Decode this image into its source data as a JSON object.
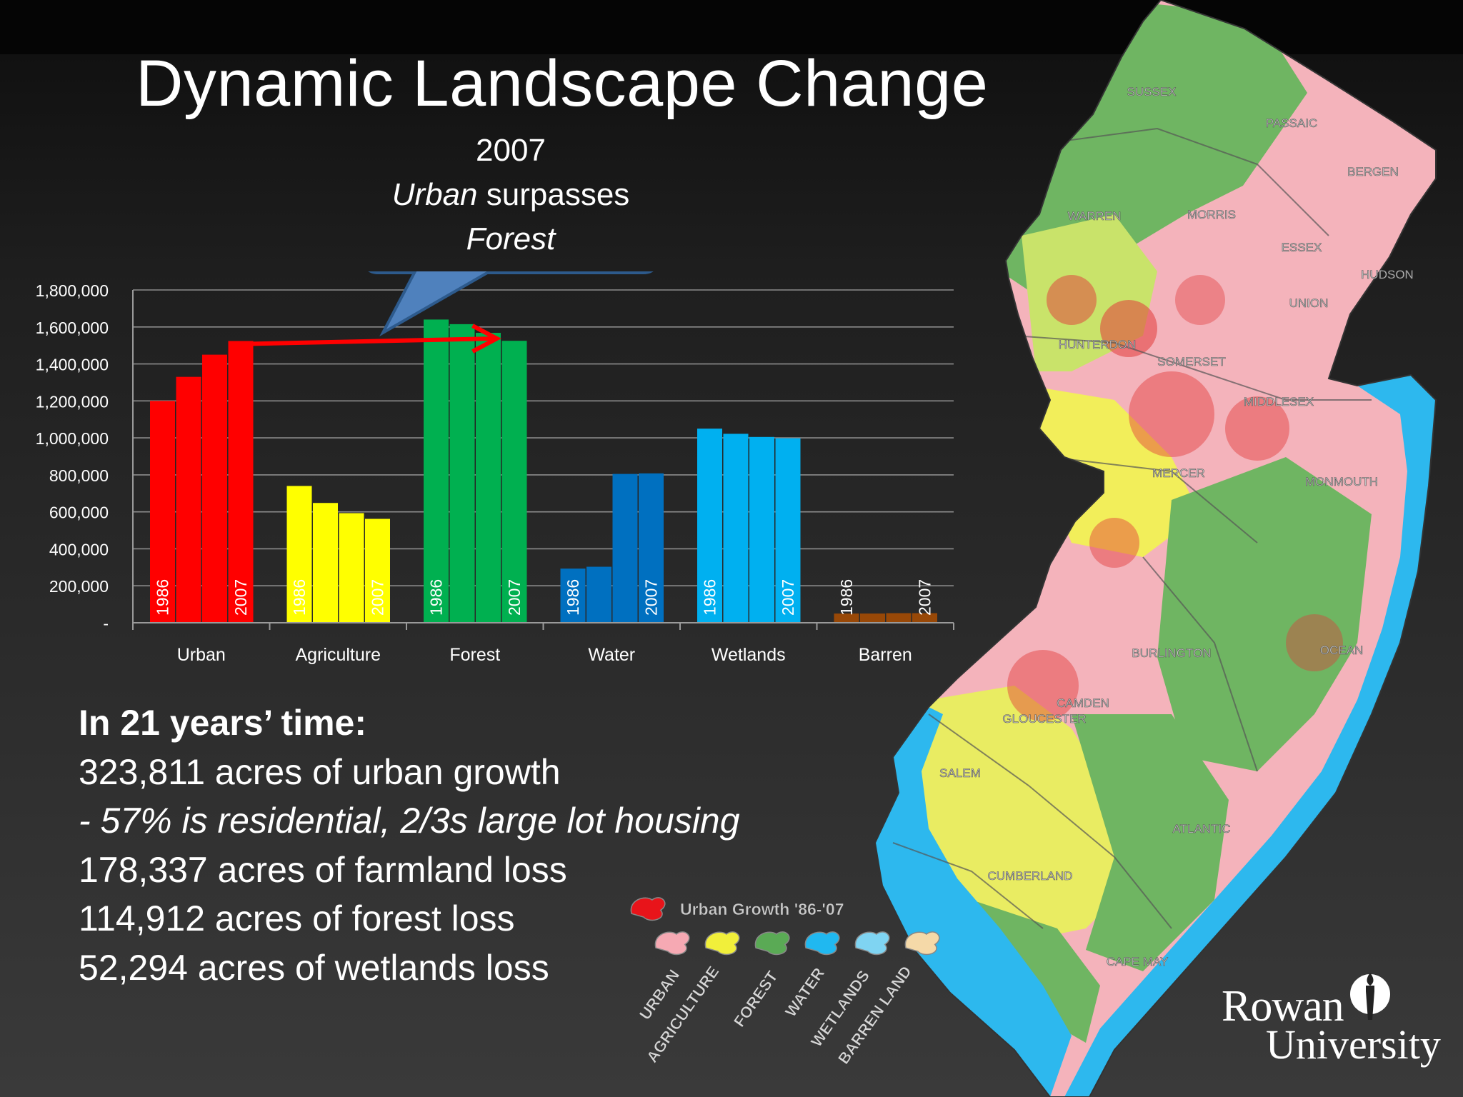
{
  "slide": {
    "title": "Dynamic Landscape Change",
    "callout": {
      "line1": "2007",
      "line2_italic": "Urban",
      "line2_rest": " surpasses",
      "line3_italic": "Forest"
    },
    "summary": {
      "heading": "In 21 years’ time:",
      "lines": [
        "323,811 acres of urban growth",
        "- 57% is residential, 2/3s large lot housing",
        "178,337 acres of farmland loss",
        "114,912 acres of forest loss",
        "52,294 acres of wetlands loss"
      ]
    },
    "map_legend": {
      "growth_label": "Urban Growth '86-'07",
      "classes": [
        "URBAN",
        "AGRICULTURE",
        "FOREST",
        "WATER",
        "WETLANDS",
        "BARREN LAND"
      ],
      "colors": [
        "#f6a9b3",
        "#f1ef3a",
        "#5aaa55",
        "#20b8f0",
        "#7fd4f2",
        "#f5d9a8"
      ],
      "growth_color": "#e8141a"
    },
    "county_labels": [
      "SUSSEX",
      "PASSAIC",
      "BERGEN",
      "WARREN",
      "MORRIS",
      "ESSEX",
      "HUDSON",
      "UNION",
      "HUNTERDON",
      "SOMERSET",
      "MIDDLESEX",
      "MERCER",
      "MONMOUTH",
      "BURLINGTON",
      "OCEAN",
      "CAMDEN",
      "GLOUCESTER",
      "SALEM",
      "ATLANTIC",
      "CUMBERLAND",
      "CAPE MAY"
    ],
    "logo": {
      "line1": "Rowan",
      "line2": "University"
    }
  },
  "chart_data": {
    "type": "bar",
    "categories": [
      "Urban",
      "Agriculture",
      "Forest",
      "Water",
      "Wetlands",
      "Barren"
    ],
    "years_per_category": 4,
    "year_labels": {
      "first": "1986",
      "last": "2007"
    },
    "series_values": [
      [
        1200000,
        1330000,
        1450000,
        1524000
      ],
      [
        740000,
        648000,
        593000,
        562000
      ],
      [
        1640000,
        1615000,
        1568000,
        1525000
      ],
      [
        293000,
        303000,
        805000,
        808000
      ],
      [
        1050000,
        1022000,
        1005000,
        998000
      ],
      [
        50000,
        50000,
        52000,
        52000
      ]
    ],
    "colors": [
      "#ff0000",
      "#ffff00",
      "#00b050",
      "#0070c0",
      "#00b0f0",
      "#984807"
    ],
    "ylim": [
      0,
      1800000
    ],
    "yticks": [
      "-",
      "200,000",
      "400,000",
      "600,000",
      "800,000",
      "1,000,000",
      "1,200,000",
      "1,400,000",
      "1,600,000",
      "1,800,000"
    ],
    "grid": true,
    "annotation": {
      "from": "Urban 2007",
      "to": "Forest 2007",
      "color": "#ff0000"
    }
  }
}
